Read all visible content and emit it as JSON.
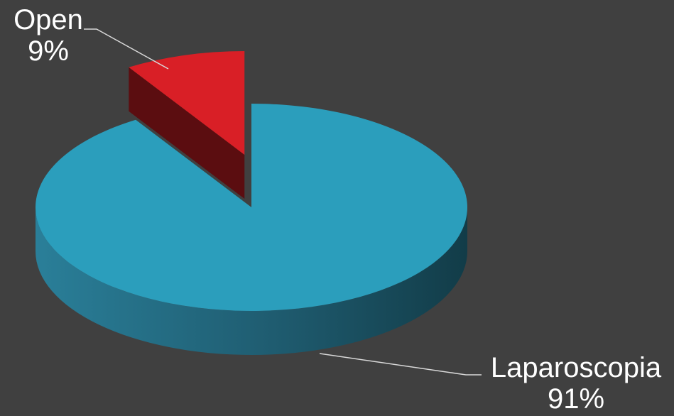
{
  "chart_data": {
    "type": "pie",
    "title": "",
    "series": [
      {
        "categories": [
          "Laparoscopia",
          "Open"
        ],
        "values": [
          91,
          9
        ],
        "labels": [
          "91%",
          "9%"
        ],
        "colors": [
          "#2B9EBC",
          "#D91F26"
        ]
      }
    ],
    "exploded": [
      "Open"
    ],
    "style": "3d",
    "legend": "none"
  }
}
